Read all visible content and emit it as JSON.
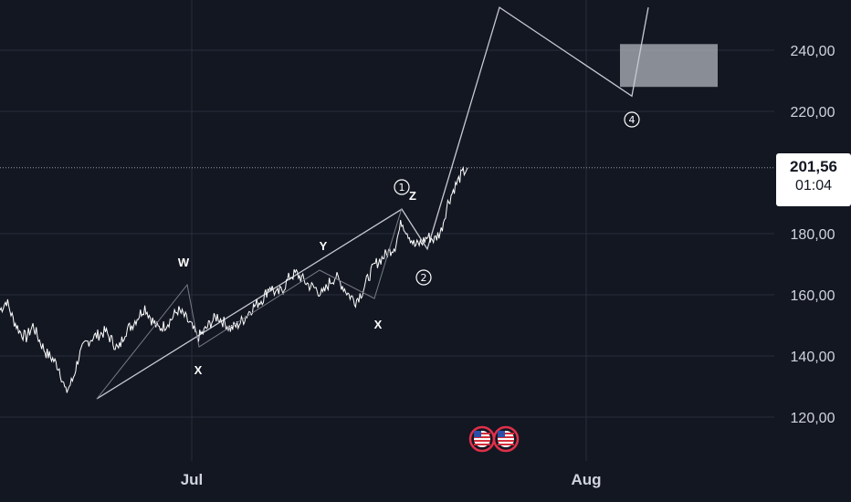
{
  "chart_data": {
    "type": "line",
    "title": "",
    "xlabel": "",
    "ylabel": "",
    "ylim": [
      110,
      252
    ],
    "y_ticks": [
      "120,00",
      "140,00",
      "160,00",
      "180,00",
      "220,00",
      "240,00"
    ],
    "x_ticks": [
      "Jul",
      "Aug"
    ],
    "last_price": "201,56",
    "countdown": "01:04",
    "grid": true,
    "series": [
      {
        "values": [
          155,
          158,
          152,
          148,
          146,
          150,
          145,
          141,
          139,
          136,
          128,
          132,
          140,
          144,
          146,
          147,
          148,
          145,
          142,
          148,
          150,
          153,
          156,
          152,
          149,
          150,
          152,
          155,
          153,
          150,
          146,
          148,
          151,
          153,
          151,
          149,
          150,
          152,
          155,
          157,
          159,
          163,
          160,
          162,
          166,
          167,
          165,
          163,
          162,
          160,
          164,
          166,
          163,
          160,
          158,
          161,
          166,
          170,
          172,
          174,
          176,
          184,
          180,
          176,
          177,
          179,
          178,
          181,
          190,
          195,
          199,
          201.56
        ]
      }
    ],
    "wave_labels": [
      {
        "text": "W",
        "price": 160
      },
      {
        "text": "X",
        "price": 146
      },
      {
        "text": "Y",
        "price": 167
      },
      {
        "text": "X",
        "price": 159
      },
      {
        "text": "Z",
        "price": 187
      },
      {
        "text": "①",
        "price": 187
      },
      {
        "text": "②",
        "price": 171
      },
      {
        "text": "④",
        "price": 221
      }
    ],
    "projection": [
      {
        "price": 126
      },
      {
        "price": 188
      },
      {
        "price": 175
      },
      {
        "price": 254
      },
      {
        "price": 225
      },
      {
        "price": 254
      }
    ],
    "target_zone": [
      228,
      242
    ]
  },
  "colors": {
    "background": "#131722",
    "grid": "#2a2e39",
    "line": "#ffffff",
    "zone": "#b2b5be"
  },
  "icons": [
    "us-flag-event-icon",
    "us-flag-event-icon"
  ]
}
